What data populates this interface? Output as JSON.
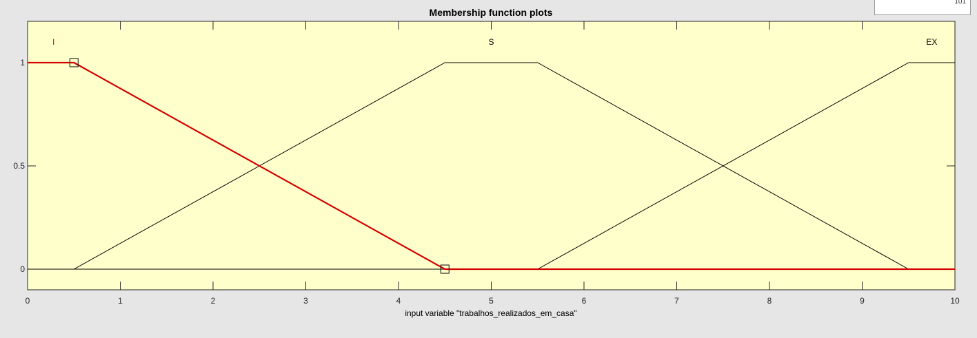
{
  "top_box": {
    "value": "101"
  },
  "colors": {
    "background": "#e6e6e6",
    "plot_bg": "#ffffcc",
    "selected": "#d40000",
    "line": "#000000"
  },
  "chart_data": {
    "type": "line",
    "title": "Membership function plots",
    "xlabel": "input variable \"trabalhos_realizados_em_casa\"",
    "ylabel": "",
    "xlim": [
      0,
      10
    ],
    "ylim": [
      -0.1,
      1.2
    ],
    "xticks": [
      0,
      1,
      2,
      3,
      4,
      5,
      6,
      7,
      8,
      9,
      10
    ],
    "yticks": [
      0,
      0.5,
      1
    ],
    "ytick_labels": [
      "0",
      "0.5",
      "1"
    ],
    "series": [
      {
        "name": "I",
        "selected": true,
        "label_x": 0.28,
        "x": [
          0,
          0.5,
          4.5,
          10
        ],
        "y": [
          1,
          1,
          0,
          0
        ],
        "markers": [
          [
            0.5,
            1
          ],
          [
            4.5,
            0
          ]
        ]
      },
      {
        "name": "S",
        "selected": false,
        "label_x": 5.0,
        "x": [
          0,
          0.5,
          4.5,
          5.5,
          9.5,
          10
        ],
        "y": [
          0,
          0,
          1,
          1,
          0,
          0
        ]
      },
      {
        "name": "EX",
        "selected": false,
        "label_x": 9.75,
        "x": [
          0,
          5.5,
          9.5,
          10
        ],
        "y": [
          0,
          0,
          1,
          1
        ]
      }
    ]
  }
}
